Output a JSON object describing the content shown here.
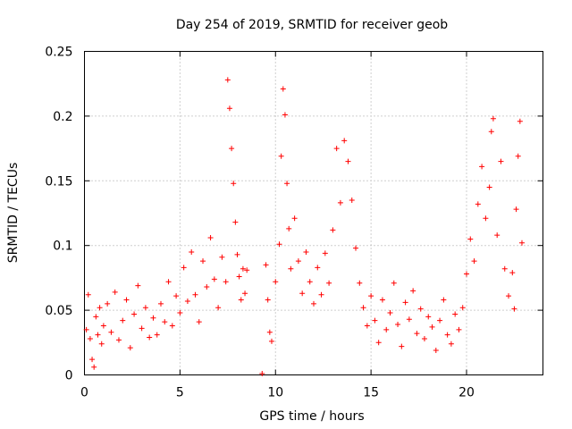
{
  "chart_data": {
    "type": "scatter",
    "title": "Day 254 of 2019, SRMTID for receiver geob",
    "xlabel": "GPS time / hours",
    "ylabel": "SRMTID / TECUs",
    "xlim": [
      0,
      24
    ],
    "ylim": [
      0,
      0.25
    ],
    "xticks": [
      0,
      5,
      10,
      15,
      20
    ],
    "xtick_labels": [
      "0",
      "5",
      "10",
      "15",
      "20"
    ],
    "yticks": [
      0,
      0.05,
      0.1,
      0.15,
      0.2,
      0.25
    ],
    "ytick_labels": [
      "0",
      "0.05",
      "0.1",
      "0.15",
      "0.2",
      "0.25"
    ],
    "grid": true,
    "marker": "+",
    "color": "#ff0000",
    "data_gap": [
      8.5,
      9.5
    ],
    "series": [
      {
        "name": "SRMTID",
        "points": [
          [
            0.1,
            0.035
          ],
          [
            0.2,
            0.062
          ],
          [
            0.3,
            0.028
          ],
          [
            0.4,
            0.012
          ],
          [
            0.5,
            0.006
          ],
          [
            0.6,
            0.045
          ],
          [
            0.7,
            0.031
          ],
          [
            0.8,
            0.052
          ],
          [
            0.9,
            0.024
          ],
          [
            1.0,
            0.038
          ],
          [
            1.2,
            0.055
          ],
          [
            1.4,
            0.033
          ],
          [
            1.6,
            0.064
          ],
          [
            1.8,
            0.027
          ],
          [
            2.0,
            0.042
          ],
          [
            2.2,
            0.058
          ],
          [
            2.4,
            0.021
          ],
          [
            2.6,
            0.047
          ],
          [
            2.8,
            0.069
          ],
          [
            3.0,
            0.036
          ],
          [
            3.2,
            0.052
          ],
          [
            3.4,
            0.029
          ],
          [
            3.6,
            0.044
          ],
          [
            3.8,
            0.031
          ],
          [
            4.0,
            0.055
          ],
          [
            4.2,
            0.041
          ],
          [
            4.4,
            0.072
          ],
          [
            4.6,
            0.038
          ],
          [
            4.8,
            0.061
          ],
          [
            5.0,
            0.048
          ],
          [
            5.2,
            0.083
          ],
          [
            5.4,
            0.057
          ],
          [
            5.6,
            0.095
          ],
          [
            5.8,
            0.062
          ],
          [
            6.0,
            0.041
          ],
          [
            6.2,
            0.088
          ],
          [
            6.4,
            0.068
          ],
          [
            6.6,
            0.106
          ],
          [
            6.8,
            0.074
          ],
          [
            7.0,
            0.052
          ],
          [
            7.2,
            0.091
          ],
          [
            7.4,
            0.072
          ],
          [
            7.5,
            0.228
          ],
          [
            7.6,
            0.206
          ],
          [
            7.7,
            0.175
          ],
          [
            7.8,
            0.148
          ],
          [
            7.9,
            0.118
          ],
          [
            8.0,
            0.093
          ],
          [
            8.1,
            0.076
          ],
          [
            8.2,
            0.058
          ],
          [
            8.3,
            0.082
          ],
          [
            8.4,
            0.063
          ],
          [
            8.5,
            0.081
          ],
          [
            9.3,
            0.001
          ],
          [
            9.5,
            0.085
          ],
          [
            9.6,
            0.058
          ],
          [
            9.7,
            0.033
          ],
          [
            9.8,
            0.026
          ],
          [
            10.0,
            0.072
          ],
          [
            10.2,
            0.101
          ],
          [
            10.3,
            0.169
          ],
          [
            10.4,
            0.221
          ],
          [
            10.5,
            0.201
          ],
          [
            10.6,
            0.148
          ],
          [
            10.7,
            0.113
          ],
          [
            10.8,
            0.082
          ],
          [
            11.0,
            0.121
          ],
          [
            11.2,
            0.088
          ],
          [
            11.4,
            0.063
          ],
          [
            11.6,
            0.095
          ],
          [
            11.8,
            0.072
          ],
          [
            12.0,
            0.055
          ],
          [
            12.2,
            0.083
          ],
          [
            12.4,
            0.062
          ],
          [
            12.6,
            0.094
          ],
          [
            12.8,
            0.071
          ],
          [
            13.0,
            0.112
          ],
          [
            13.2,
            0.175
          ],
          [
            13.4,
            0.133
          ],
          [
            13.6,
            0.181
          ],
          [
            13.8,
            0.165
          ],
          [
            14.0,
            0.135
          ],
          [
            14.2,
            0.098
          ],
          [
            14.4,
            0.071
          ],
          [
            14.6,
            0.052
          ],
          [
            14.8,
            0.038
          ],
          [
            15.0,
            0.061
          ],
          [
            15.2,
            0.042
          ],
          [
            15.4,
            0.025
          ],
          [
            15.6,
            0.058
          ],
          [
            15.8,
            0.035
          ],
          [
            16.0,
            0.048
          ],
          [
            16.2,
            0.071
          ],
          [
            16.4,
            0.039
          ],
          [
            16.6,
            0.022
          ],
          [
            16.8,
            0.056
          ],
          [
            17.0,
            0.043
          ],
          [
            17.2,
            0.065
          ],
          [
            17.4,
            0.032
          ],
          [
            17.6,
            0.051
          ],
          [
            17.8,
            0.028
          ],
          [
            18.0,
            0.045
          ],
          [
            18.2,
            0.037
          ],
          [
            18.4,
            0.019
          ],
          [
            18.6,
            0.042
          ],
          [
            18.8,
            0.058
          ],
          [
            19.0,
            0.031
          ],
          [
            19.2,
            0.024
          ],
          [
            19.4,
            0.047
          ],
          [
            19.6,
            0.035
          ],
          [
            19.8,
            0.052
          ],
          [
            20.0,
            0.078
          ],
          [
            20.2,
            0.105
          ],
          [
            20.4,
            0.088
          ],
          [
            20.6,
            0.132
          ],
          [
            20.8,
            0.161
          ],
          [
            21.0,
            0.121
          ],
          [
            21.2,
            0.145
          ],
          [
            21.4,
            0.198
          ],
          [
            21.6,
            0.108
          ],
          [
            21.8,
            0.165
          ],
          [
            22.0,
            0.082
          ],
          [
            22.2,
            0.061
          ],
          [
            22.4,
            0.079
          ],
          [
            22.6,
            0.128
          ],
          [
            22.8,
            0.196
          ],
          [
            22.9,
            0.102
          ],
          [
            22.7,
            0.169
          ],
          [
            22.5,
            0.051
          ],
          [
            21.3,
            0.188
          ]
        ]
      }
    ]
  }
}
